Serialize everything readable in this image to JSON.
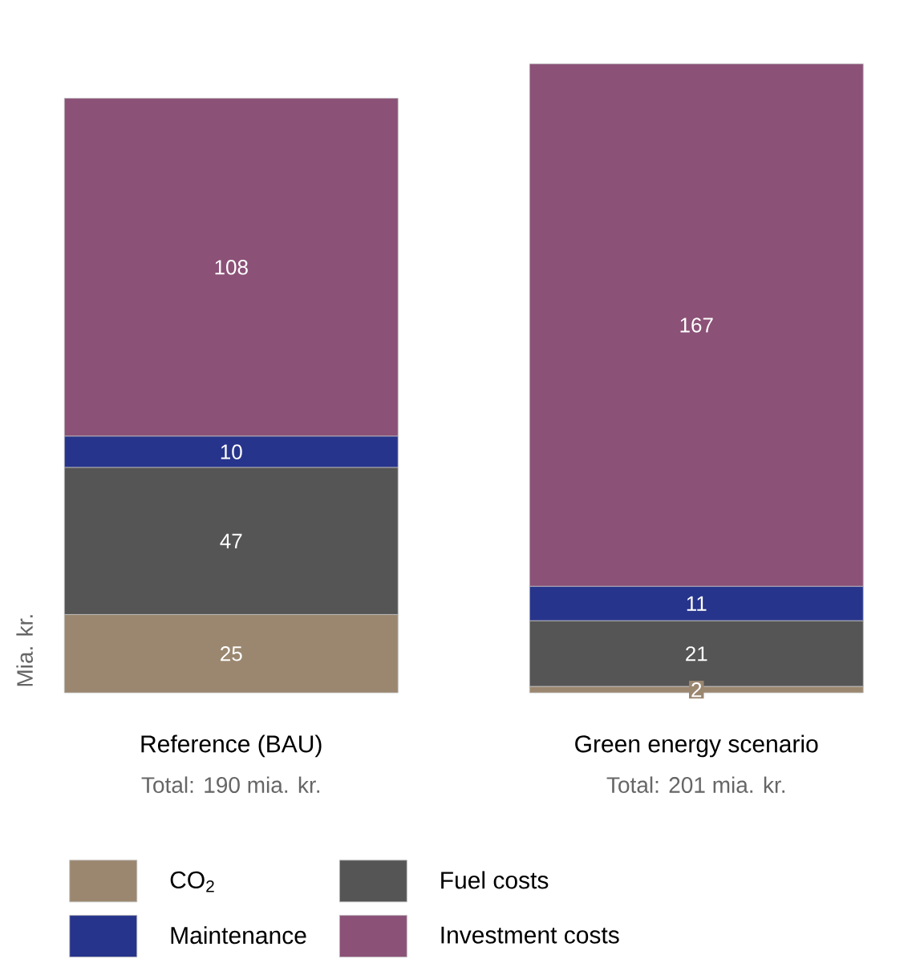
{
  "chart_data": {
    "type": "bar",
    "stacked": true,
    "data_labels": true,
    "ylabel": "Mia. kr.",
    "legend": "bottom",
    "categories": [
      "Reference (BAU)",
      "Green energy scenario"
    ],
    "annotations": [
      "Total: 190 mia. kr.",
      "Total: 201 mia. kr."
    ],
    "series": [
      {
        "name": "CO$_{2}$",
        "color": "#9b8770",
        "values": [
          25,
          2
        ]
      },
      {
        "name": "Fuel costs",
        "color": "#555555",
        "values": [
          47,
          21
        ]
      },
      {
        "name": "Maintenance",
        "color": "#27348b",
        "values": [
          10,
          11
        ]
      },
      {
        "name": "Investment costs",
        "color": "#8b5177",
        "values": [
          108,
          167
        ]
      }
    ]
  }
}
